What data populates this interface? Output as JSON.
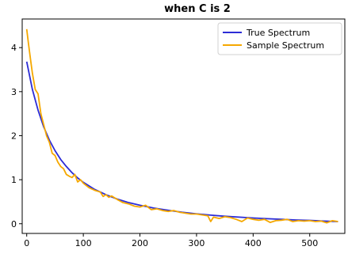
{
  "chart_data": {
    "type": "line",
    "title": "when C is 2",
    "xlabel": "",
    "ylabel": "",
    "xlim": [
      -8,
      562
    ],
    "ylim": [
      -0.22,
      4.65
    ],
    "xticks": [
      0,
      100,
      200,
      300,
      400,
      500
    ],
    "yticks": [
      0,
      1,
      2,
      3,
      4
    ],
    "grid": false,
    "legend_position": "top-right",
    "series": [
      {
        "name": "True Spectrum",
        "color": "#2c2cd6",
        "x": [
          0,
          10,
          20,
          30,
          40,
          50,
          60,
          70,
          80,
          90,
          100,
          120,
          140,
          160,
          180,
          200,
          225,
          250,
          275,
          300,
          325,
          350,
          375,
          400,
          425,
          450,
          475,
          500,
          525,
          550
        ],
        "y": [
          3.68,
          3.05,
          2.58,
          2.2,
          1.9,
          1.66,
          1.46,
          1.3,
          1.16,
          1.04,
          0.94,
          0.78,
          0.66,
          0.56,
          0.48,
          0.42,
          0.355,
          0.305,
          0.26,
          0.225,
          0.195,
          0.17,
          0.15,
          0.13,
          0.115,
          0.1,
          0.085,
          0.075,
          0.06,
          0.05
        ]
      },
      {
        "name": "Sample Spectrum",
        "color": "#f5a800",
        "x": [
          0,
          3,
          6,
          10,
          15,
          20,
          25,
          30,
          35,
          40,
          45,
          50,
          55,
          60,
          65,
          70,
          75,
          80,
          85,
          90,
          95,
          100,
          110,
          120,
          130,
          135,
          140,
          145,
          150,
          160,
          170,
          180,
          190,
          200,
          210,
          220,
          230,
          240,
          250,
          260,
          270,
          280,
          290,
          300,
          310,
          320,
          325,
          330,
          340,
          350,
          360,
          370,
          380,
          390,
          400,
          410,
          420,
          430,
          440,
          450,
          460,
          470,
          480,
          490,
          500,
          510,
          520,
          530,
          540,
          550
        ],
        "y": [
          4.42,
          4.1,
          3.8,
          3.42,
          3.05,
          2.95,
          2.5,
          2.25,
          2.0,
          1.85,
          1.6,
          1.55,
          1.4,
          1.3,
          1.25,
          1.12,
          1.08,
          1.05,
          1.12,
          0.95,
          1.0,
          0.92,
          0.82,
          0.76,
          0.72,
          0.62,
          0.66,
          0.6,
          0.63,
          0.55,
          0.48,
          0.45,
          0.4,
          0.38,
          0.42,
          0.32,
          0.34,
          0.3,
          0.28,
          0.3,
          0.26,
          0.24,
          0.22,
          0.22,
          0.2,
          0.18,
          0.05,
          0.15,
          0.12,
          0.16,
          0.14,
          0.1,
          0.05,
          0.13,
          0.1,
          0.08,
          0.1,
          0.03,
          0.07,
          0.08,
          0.1,
          0.05,
          0.07,
          0.06,
          0.07,
          0.05,
          0.06,
          0.02,
          0.07,
          0.05
        ]
      }
    ]
  }
}
